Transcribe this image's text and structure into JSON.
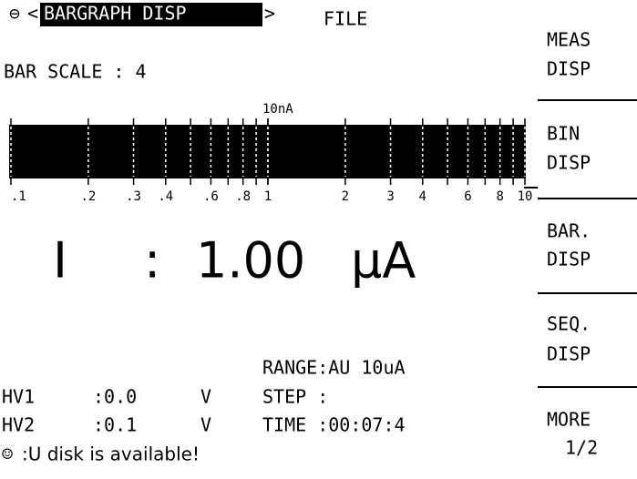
{
  "header": {
    "icon": "⊖",
    "left_arrow": "<",
    "mode_tab": "BARGRAPH DISP",
    "right_arrow": ">",
    "file": "FILE"
  },
  "bar_scale": "BAR SCALE : 4",
  "bargraph": {
    "unit_label": "10nA",
    "scale_labels": [
      ".1",
      ".2",
      ".3",
      ".4",
      ".6",
      ".8",
      "1",
      "2",
      "3",
      "4",
      "6",
      "8",
      "10"
    ]
  },
  "reading": {
    "quantity": "I",
    "separator": ":",
    "value": "1.00",
    "unit": "μA"
  },
  "status": {
    "range": "RANGE:AU 10uA",
    "hv1": {
      "label": "HV1",
      "value": ":0.0",
      "unit": "V"
    },
    "hv2": {
      "label": "HV2",
      "value": ":0.1",
      "unit": "V"
    },
    "step": "STEP :",
    "time": "TIME :00:07:4"
  },
  "message": {
    "icon": "☺",
    "text": ":U disk is available!"
  },
  "softkeys": [
    {
      "line1": "MEAS",
      "line2": "DISP"
    },
    {
      "line1": "BIN",
      "line2": "DISP"
    },
    {
      "line1": "BAR.",
      "line2": "DISP"
    },
    {
      "line1": "SEQ.",
      "line2": "DISP"
    },
    {
      "line1": "MORE",
      "line2": "1/2"
    }
  ]
}
